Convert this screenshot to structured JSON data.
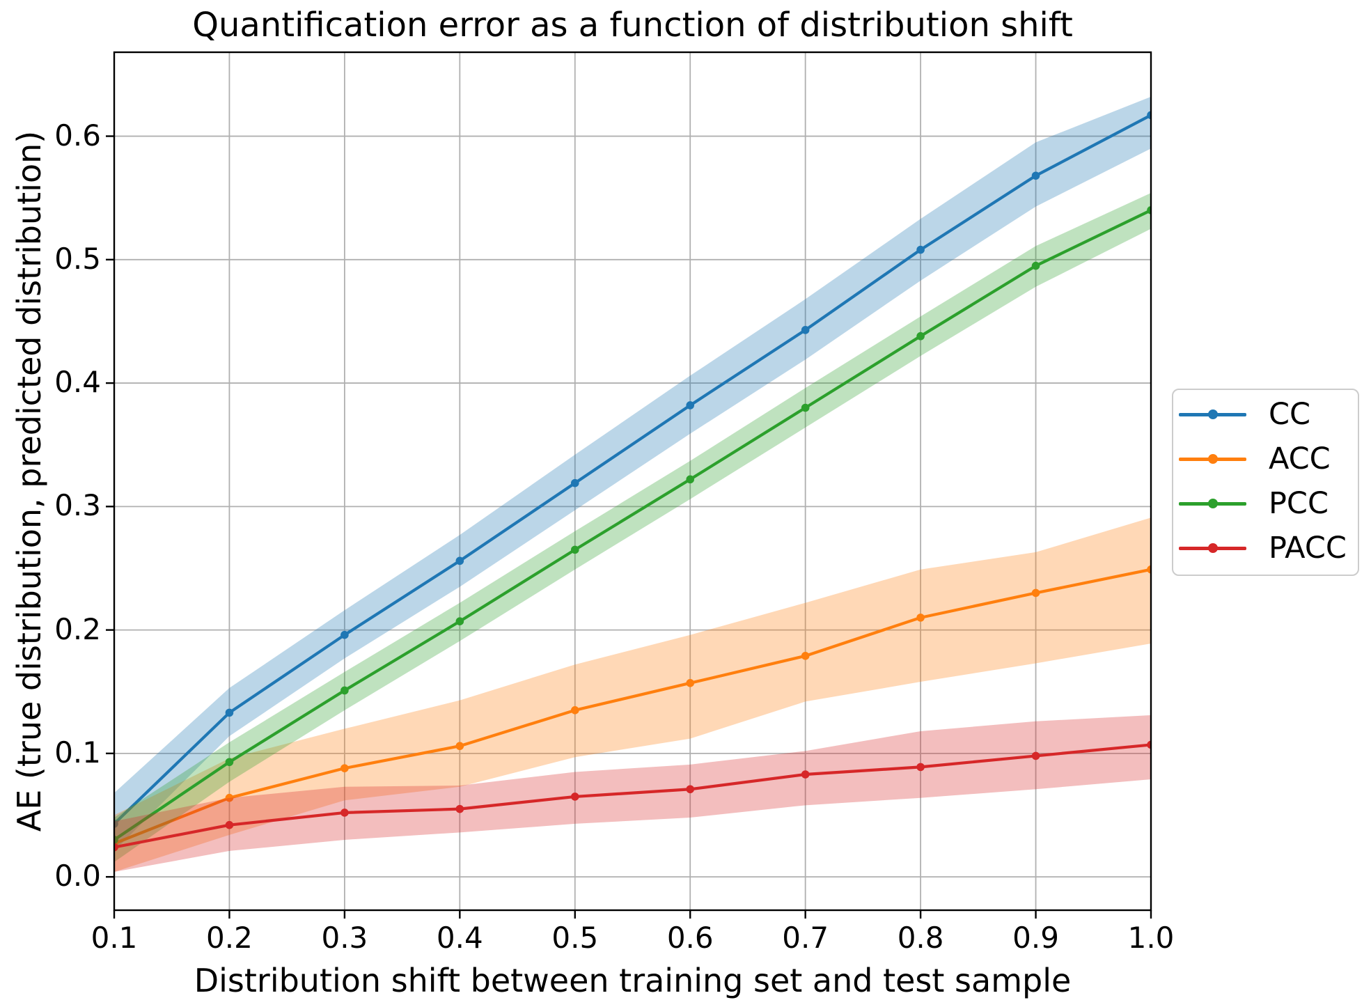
{
  "figure": {
    "title": "Quantification error as a function of distribution shift",
    "xlabel": "Distribution shift between training set and test sample",
    "ylabel": "AE (true distribution, predicted distribution)"
  },
  "chart_data": {
    "type": "line",
    "title": "Quantification error as a function of distribution shift",
    "xlabel": "Distribution shift between training set and test sample",
    "ylabel": "AE (true distribution, predicted distribution)",
    "x": [
      0.1,
      0.2,
      0.3,
      0.4,
      0.5,
      0.6,
      0.7,
      0.8,
      0.9,
      1.0
    ],
    "x_tick_labels": [
      "0.1",
      "0.2",
      "0.3",
      "0.4",
      "0.5",
      "0.6",
      "0.7",
      "0.8",
      "0.9",
      "1.0"
    ],
    "y_ticks": [
      0.0,
      0.1,
      0.2,
      0.3,
      0.4,
      0.5,
      0.6
    ],
    "y_tick_labels": [
      "0.0",
      "0.1",
      "0.2",
      "0.3",
      "0.4",
      "0.5",
      "0.6"
    ],
    "xlim": [
      0.1,
      1.0
    ],
    "ylim": [
      -0.027,
      0.668
    ],
    "grid": true,
    "grid_color": "#b0b0b0",
    "spine_color": "#000000",
    "band_opacity": 0.3,
    "legend_position": "outside-right",
    "series": [
      {
        "name": "CC",
        "color": "#1f77b4",
        "values": [
          0.043,
          0.133,
          0.196,
          0.256,
          0.319,
          0.382,
          0.443,
          0.508,
          0.568,
          0.617
        ],
        "band_upper": [
          0.068,
          0.153,
          0.216,
          0.277,
          0.342,
          0.406,
          0.468,
          0.533,
          0.595,
          0.632
        ],
        "band_lower": [
          0.021,
          0.114,
          0.177,
          0.235,
          0.297,
          0.359,
          0.419,
          0.483,
          0.543,
          0.59
        ]
      },
      {
        "name": "ACC",
        "color": "#ff7f0e",
        "values": [
          0.027,
          0.064,
          0.088,
          0.106,
          0.135,
          0.157,
          0.179,
          0.21,
          0.23,
          0.249
        ],
        "band_upper": [
          0.05,
          0.096,
          0.12,
          0.143,
          0.172,
          0.196,
          0.222,
          0.249,
          0.263,
          0.291
        ],
        "band_lower": [
          0.004,
          0.034,
          0.062,
          0.073,
          0.097,
          0.112,
          0.142,
          0.158,
          0.173,
          0.189
        ]
      },
      {
        "name": "PCC",
        "color": "#2ca02c",
        "values": [
          0.03,
          0.093,
          0.151,
          0.207,
          0.265,
          0.322,
          0.38,
          0.438,
          0.495,
          0.54
        ],
        "band_upper": [
          0.048,
          0.109,
          0.166,
          0.222,
          0.28,
          0.337,
          0.396,
          0.454,
          0.511,
          0.554
        ],
        "band_lower": [
          0.012,
          0.077,
          0.135,
          0.191,
          0.249,
          0.306,
          0.364,
          0.422,
          0.478,
          0.525
        ]
      },
      {
        "name": "PACC",
        "color": "#d62728",
        "values": [
          0.024,
          0.042,
          0.052,
          0.055,
          0.065,
          0.071,
          0.083,
          0.089,
          0.098,
          0.107
        ],
        "band_upper": [
          0.045,
          0.064,
          0.073,
          0.074,
          0.085,
          0.091,
          0.102,
          0.118,
          0.126,
          0.131
        ],
        "band_lower": [
          0.004,
          0.021,
          0.03,
          0.036,
          0.043,
          0.048,
          0.058,
          0.064,
          0.071,
          0.079
        ]
      }
    ]
  }
}
